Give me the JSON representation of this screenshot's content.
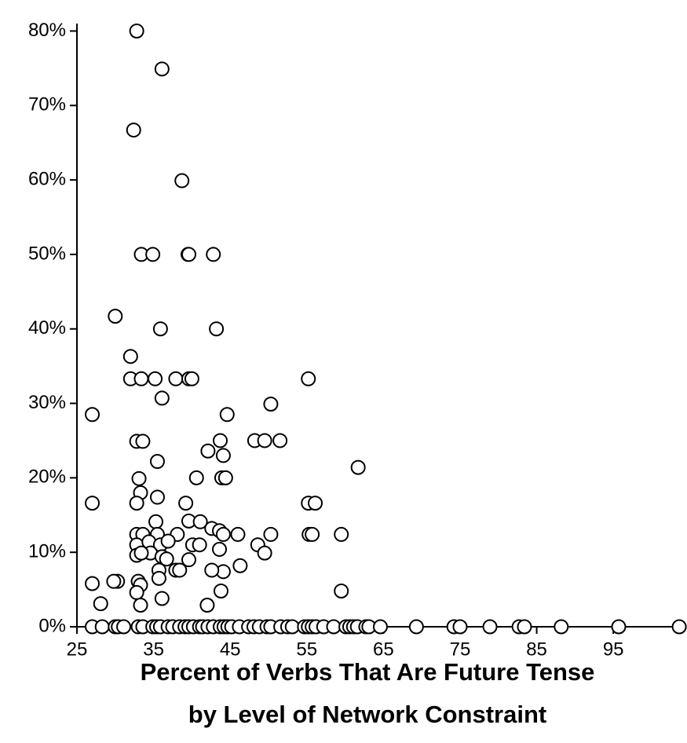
{
  "chart_data": {
    "type": "scatter",
    "x_label": [
      "Percent of Verbs That Are Future Tense",
      "by Level of Network Constraint"
    ],
    "color": "#000000",
    "xlim": [
      25,
      104
    ],
    "ylim": [
      0,
      81
    ],
    "xticks": [
      25,
      35,
      45,
      55,
      65,
      75,
      85,
      95
    ],
    "yticks": [
      {
        "value": 0,
        "label": "0%"
      },
      {
        "value": 10,
        "label": "10%"
      },
      {
        "value": 20,
        "label": "20%"
      },
      {
        "value": 30,
        "label": "30%"
      },
      {
        "value": 40,
        "label": "40%"
      },
      {
        "value": 50,
        "label": "50%"
      },
      {
        "value": 60,
        "label": "60%"
      },
      {
        "value": 70,
        "label": "70%"
      },
      {
        "value": 80,
        "label": "80%"
      }
    ],
    "x": [
      32.8,
      36.1,
      32.4,
      38.7,
      33.4,
      34.9,
      39.5,
      39.6,
      42.8,
      30.0,
      35.9,
      43.2,
      32.0,
      32.0,
      33.4,
      35.2,
      37.9,
      39.6,
      40.0,
      55.2,
      36.1,
      27.0,
      44.6,
      50.3,
      32.8,
      33.6,
      43.7,
      48.2,
      49.5,
      51.5,
      42.1,
      44.1,
      35.5,
      61.7,
      33.1,
      40.6,
      43.9,
      44.4,
      33.3,
      35.5,
      27.0,
      32.8,
      39.2,
      55.2,
      56.1,
      35.3,
      39.6,
      41.1,
      42.6,
      43.6,
      32.8,
      33.6,
      35.5,
      38.1,
      44.1,
      46.0,
      50.3,
      55.3,
      55.7,
      59.5,
      32.8,
      34.4,
      35.9,
      36.9,
      40.1,
      41.0,
      48.6,
      34.6,
      32.8,
      33.4,
      49.5,
      36.1,
      36.7,
      39.6,
      43.6,
      46.3,
      35.7,
      37.9,
      38.4,
      44.1,
      42.6,
      35.7,
      33.0,
      33.3,
      30.3,
      29.8,
      27.0,
      43.8,
      59.5,
      32.8,
      36.1,
      28.1,
      33.3,
      42.0,
      27.0,
      28.3,
      30.0,
      30.4,
      31.1,
      33.0,
      33.6,
      34.9,
      35.4,
      35.9,
      36.9,
      37.5,
      38.4,
      39.1,
      39.6,
      40.2,
      41.0,
      41.4,
      42.1,
      42.8,
      43.7,
      44.2,
      44.7,
      45.2,
      46.2,
      47.4,
      48.1,
      48.8,
      49.8,
      50.3,
      51.6,
      52.5,
      53.1,
      54.7,
      55.2,
      55.7,
      56.2,
      57.2,
      58.5,
      60.1,
      60.6,
      61.1,
      61.6,
      62.7,
      63.1,
      64.6,
      69.3,
      74.2,
      75.0,
      78.9,
      82.7,
      83.4,
      88.2,
      95.7,
      103.6
    ],
    "values": [
      80,
      74.9,
      66.7,
      59.9,
      50,
      50,
      50,
      50,
      50,
      41.7,
      40,
      40,
      36.3,
      33.3,
      33.3,
      33.3,
      33.3,
      33.3,
      33.3,
      33.3,
      30.7,
      28.5,
      28.5,
      29.9,
      24.9,
      24.9,
      25,
      25,
      25,
      25,
      23.6,
      23,
      22.2,
      21.4,
      19.9,
      20,
      20,
      20,
      18,
      17.4,
      16.6,
      16.6,
      16.6,
      16.6,
      16.6,
      14.1,
      14.2,
      14.1,
      13.2,
      12.9,
      12.4,
      12.4,
      12.4,
      12.4,
      12.4,
      12.4,
      12.4,
      12.4,
      12.4,
      12.4,
      11,
      11.4,
      11,
      11.5,
      11,
      11,
      11,
      9.9,
      9.6,
      9.9,
      9.9,
      9.4,
      9.1,
      9.0,
      10.4,
      8.2,
      7.6,
      7.6,
      7.6,
      7.4,
      7.6,
      6.5,
      6.1,
      5.6,
      6.1,
      6.1,
      5.8,
      4.8,
      4.8,
      4.6,
      3.8,
      3.1,
      2.9,
      2.9,
      0,
      0,
      0,
      0,
      0,
      0,
      0,
      0,
      0,
      0,
      0,
      0,
      0,
      0,
      0,
      0,
      0,
      0,
      0,
      0,
      0,
      0,
      0,
      0,
      0,
      0,
      0,
      0,
      0,
      0,
      0,
      0,
      0,
      0,
      0,
      0,
      0,
      0,
      0,
      0,
      0,
      0,
      0,
      0,
      0,
      0,
      0,
      0,
      0,
      0,
      0,
      0,
      0,
      0,
      0
    ]
  }
}
